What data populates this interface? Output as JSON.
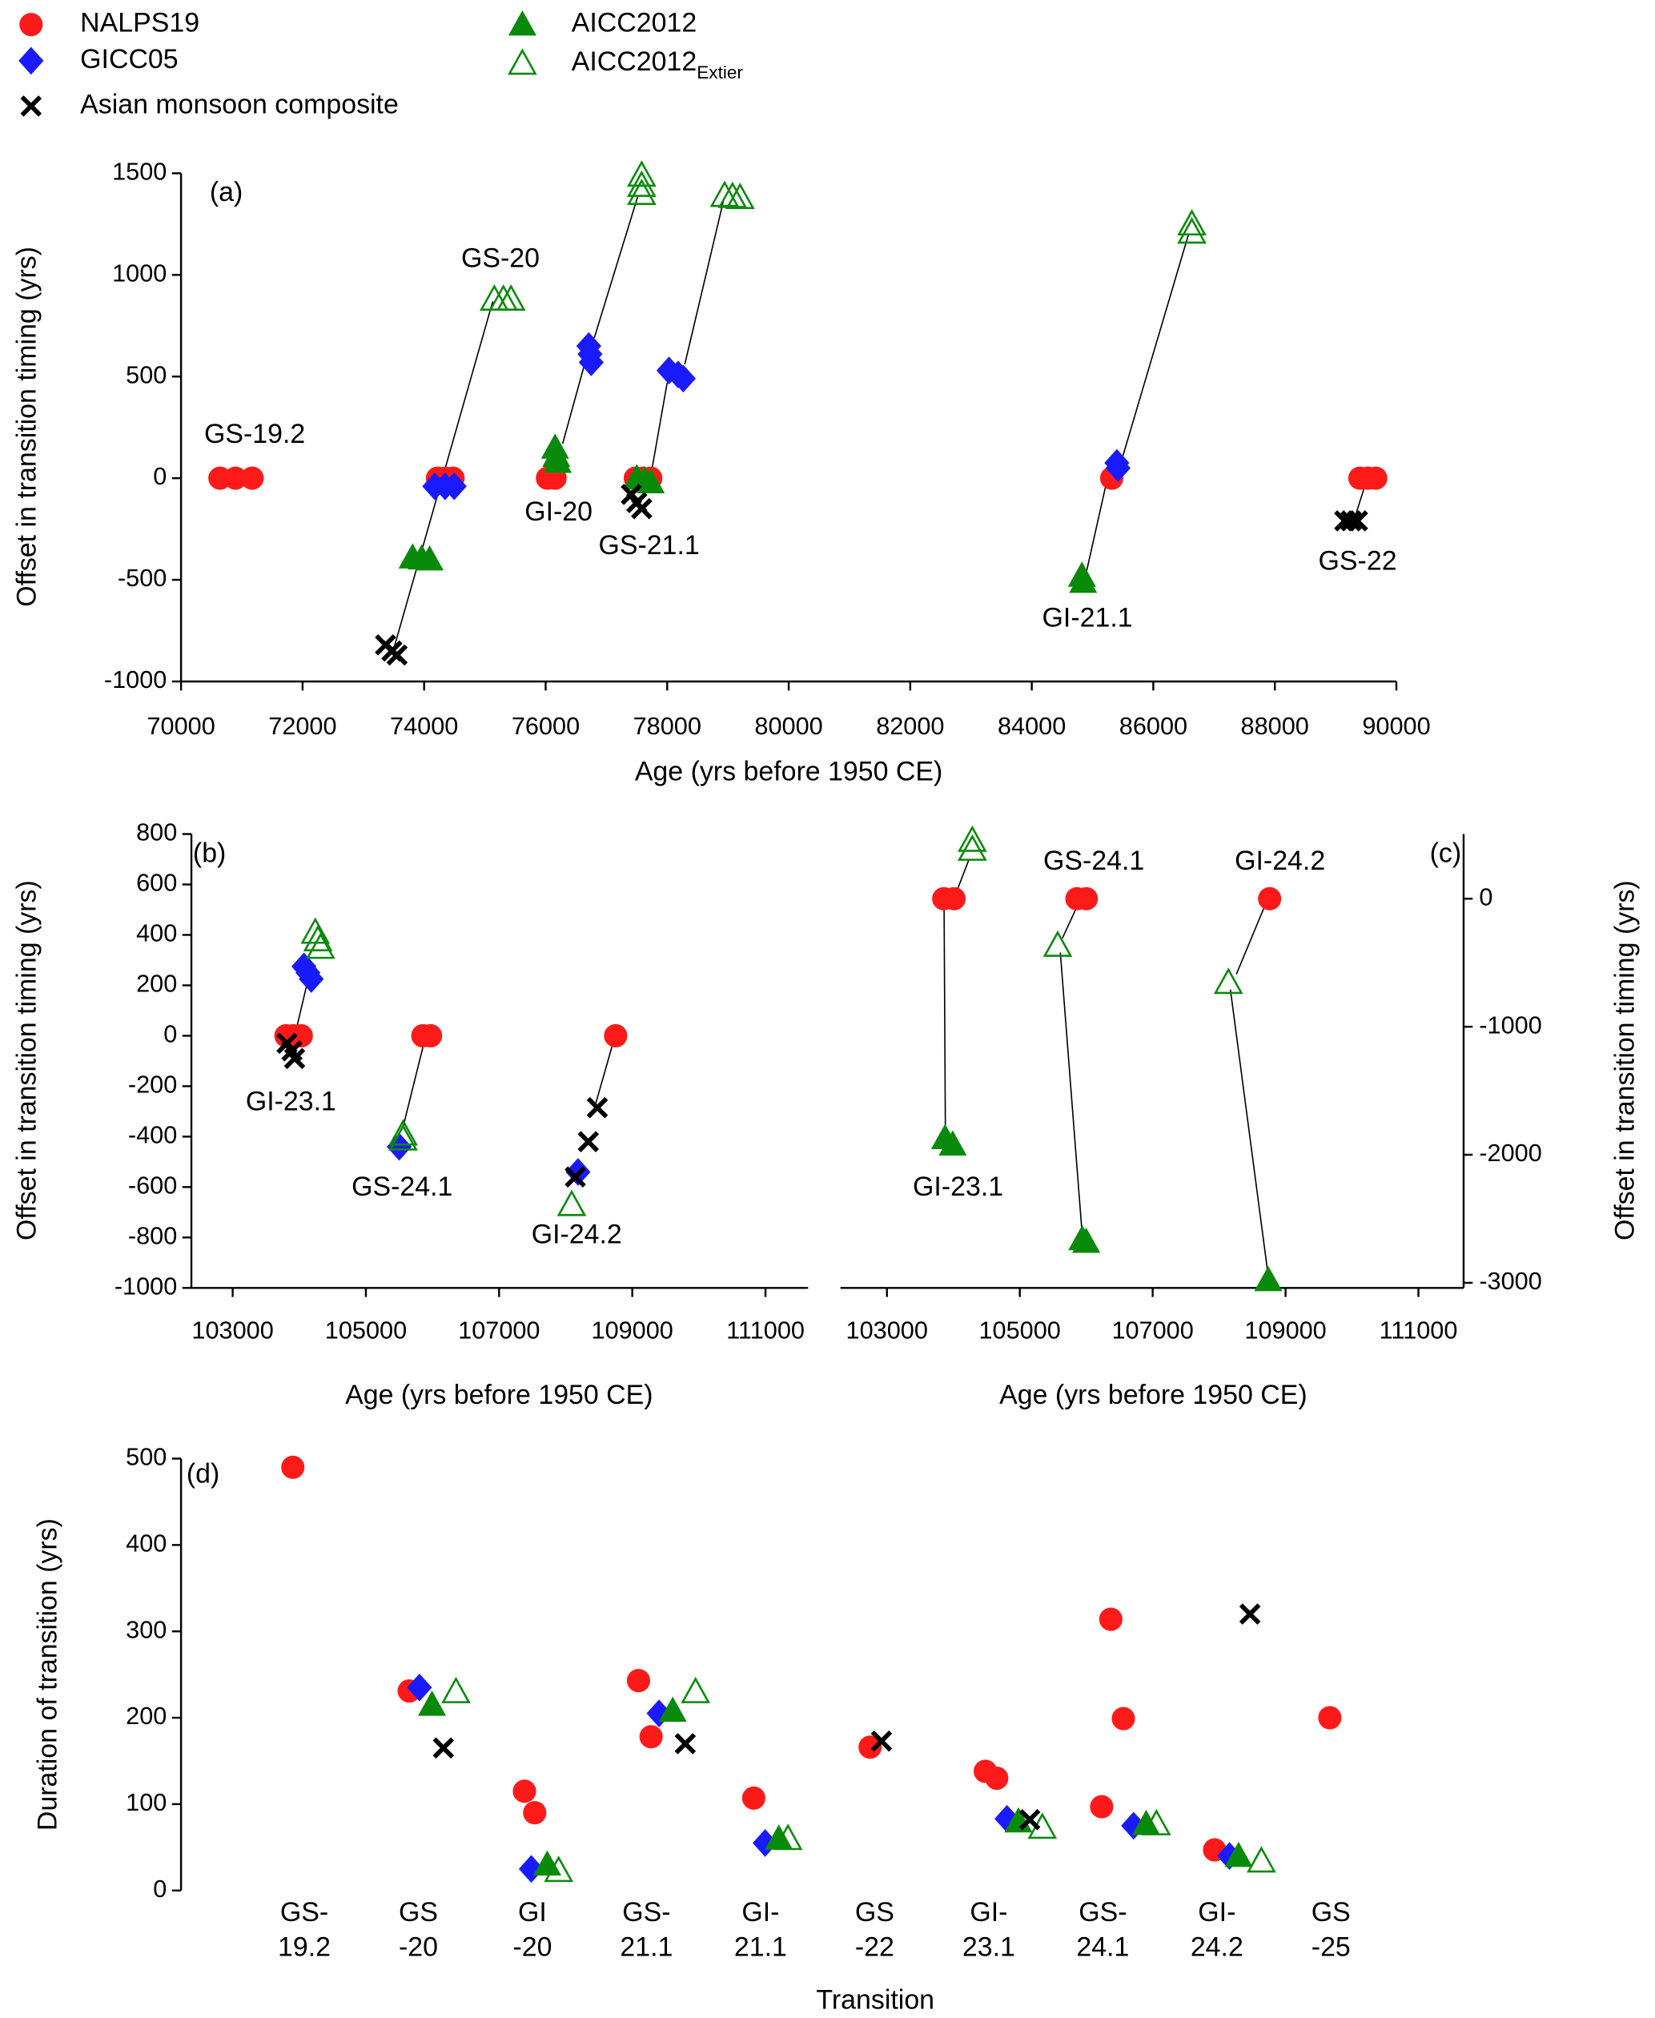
{
  "legend": [
    {
      "name": "NALPS19"
    },
    {
      "name": "GICC05"
    },
    {
      "name": "AICC2012"
    },
    {
      "name": "AICC2012",
      "subscript": "Extier"
    },
    {
      "name": "Asian  monsoon composite"
    }
  ],
  "chart_data": [
    {
      "type": "scatter",
      "label": "(a)",
      "xlabel": "Age (yrs before 1950 CE)",
      "ylabel": "Offset in transition timing (yrs)",
      "xlim": [
        70000,
        90000
      ],
      "xticks": [
        70000,
        72000,
        74000,
        76000,
        78000,
        80000,
        82000,
        84000,
        86000,
        88000,
        90000
      ],
      "ylim": [
        -1000,
        1500
      ],
      "yticks": [
        -1000,
        -500,
        0,
        500,
        1000,
        1500
      ],
      "frame": [
        "left",
        "bottom"
      ],
      "annotations": [
        "GS-19.2",
        "GS-20",
        "GI-20",
        "GS-21.1",
        "GI-21.1",
        "GS-22"
      ],
      "connectors": [
        [
          73490,
          -850,
          75130,
          870
        ],
        [
          76280,
          170,
          76640,
          560
        ],
        [
          76800,
          690,
          77520,
          1390
        ],
        [
          77700,
          -40,
          78000,
          470
        ],
        [
          78290,
          560,
          78930,
          1370
        ],
        [
          84900,
          -460,
          85230,
          -20
        ],
        [
          85500,
          110,
          86580,
          1200
        ],
        [
          89320,
          -190,
          89500,
          -20
        ]
      ],
      "series": [
        {
          "marker": "circle",
          "color": "#ff1a1a",
          "filled": true,
          "x": [
            70640,
            70895,
            71170,
            74220,
            74345,
            74475,
            76030,
            76155,
            77475,
            77600,
            77730,
            85315,
            89400,
            89530,
            89660
          ],
          "values": [
            0,
            0,
            0,
            0,
            0,
            0,
            0,
            0,
            0,
            0,
            0,
            0,
            0,
            0,
            0
          ]
        },
        {
          "marker": "diamond",
          "color": "#1a1aff",
          "filled": true,
          "x": [
            74175,
            74345,
            74495,
            76710,
            76730,
            76750,
            78030,
            78180,
            78265,
            85400,
            85420
          ],
          "values": [
            -40,
            -40,
            -40,
            650,
            610,
            570,
            530,
            510,
            490,
            75,
            50
          ]
        },
        {
          "marker": "triangle",
          "color": "#0a8a0a",
          "filled": true,
          "x": [
            73810,
            73960,
            74090,
            76155,
            76175,
            76200,
            77500,
            77625,
            77730,
            84825,
            84845
          ],
          "values": [
            -390,
            -395,
            -400,
            150,
            110,
            80,
            0,
            -10,
            -20,
            -480,
            -510
          ]
        },
        {
          "marker": "triangle",
          "color": "#0a8a0a",
          "filled": false,
          "x": [
            75155,
            75305,
            75430,
            77580,
            77580,
            77580,
            78945,
            79075,
            79200,
            86635,
            86635
          ],
          "values": [
            880,
            880,
            880,
            1490,
            1440,
            1400,
            1390,
            1385,
            1380,
            1250,
            1210
          ]
        },
        {
          "marker": "cross",
          "color": "#000000",
          "filled": true,
          "x": [
            73365,
            73470,
            73555,
            77410,
            77500,
            77580,
            89150,
            89255,
            89360
          ],
          "values": [
            -820,
            -850,
            -870,
            -80,
            -120,
            -150,
            -210,
            -210,
            -210
          ]
        }
      ]
    },
    {
      "type": "scatter",
      "label": "(b)",
      "xlabel": "Age (yrs before 1950 CE)",
      "ylabel": "Offset in transition timing (yrs)",
      "xlim": [
        102380,
        111640
      ],
      "xticks": [
        103000,
        105000,
        107000,
        109000,
        111000
      ],
      "ylim": [
        -1000,
        800
      ],
      "yticks": [
        -1000,
        -800,
        -600,
        -400,
        -200,
        0,
        200,
        400,
        600,
        800
      ],
      "frame": [
        "left",
        "bottom"
      ],
      "annotations": [
        "GI-23.1",
        "GS-24.1",
        "GI-24.2"
      ],
      "connectors": [
        [
          103950,
          20,
          104120,
          210
        ],
        [
          105560,
          -360,
          105880,
          -20
        ],
        [
          108450,
          -270,
          108720,
          -20
        ]
      ],
      "series": [
        {
          "marker": "circle",
          "color": "#ff1a1a",
          "filled": true,
          "x": [
            103800,
            103910,
            104030,
            105855,
            105970,
            108750
          ],
          "values": [
            0,
            0,
            0,
            0,
            0,
            0
          ]
        },
        {
          "marker": "diamond",
          "color": "#1a1aff",
          "filled": true,
          "x": [
            104070,
            104130,
            104180,
            105500,
            108185
          ],
          "values": [
            275,
            250,
            225,
            -440,
            -540
          ]
        },
        {
          "marker": "triangle",
          "color": "#0a8a0a",
          "filled": false,
          "x": [
            104240,
            104280,
            104320,
            105560,
            105560,
            108090
          ],
          "values": [
            410,
            380,
            350,
            -390,
            -410,
            -670
          ]
        },
        {
          "marker": "cross",
          "color": "#000000",
          "filled": true,
          "x": [
            103815,
            103890,
            103930,
            108145,
            108340,
            108475
          ],
          "values": [
            -30,
            -60,
            -90,
            -560,
            -420,
            -285
          ]
        }
      ]
    },
    {
      "type": "scatter",
      "label": "(c)",
      "xlabel": "Age (yrs before 1950 CE)",
      "ylabel": "Offset in transition timing (yrs)",
      "xlim": [
        102300,
        111680
      ],
      "xticks": [
        103000,
        105000,
        107000,
        109000,
        111000
      ],
      "y2lim": [
        -3040,
        505
      ],
      "y2ticks": [
        -3000,
        -2000,
        -1000,
        0
      ],
      "frame": [
        "right",
        "bottom"
      ],
      "annotations": [
        "GS-24.1",
        "GI-24.2",
        "GI-23.1"
      ],
      "connectors": [
        [
          103880,
          -1840,
          103860,
          -40
        ],
        [
          104030,
          30,
          104230,
          300
        ],
        [
          105940,
          -2630,
          105610,
          -420
        ],
        [
          105640,
          -310,
          105880,
          -40
        ],
        [
          108740,
          -2950,
          108170,
          -710
        ],
        [
          108260,
          -590,
          108700,
          -40
        ]
      ],
      "series": [
        {
          "marker": "circle",
          "color": "#ff1a1a",
          "filled": true,
          "axis": "y2",
          "x": [
            103855,
            104010,
            105860,
            106000,
            108760
          ],
          "values": [
            0,
            0,
            0,
            0,
            0
          ]
        },
        {
          "marker": "triangle",
          "color": "#0a8a0a",
          "filled": true,
          "axis": "y2",
          "x": [
            103875,
            103990,
            105940,
            106000,
            108740
          ],
          "values": [
            -1870,
            -1920,
            -2660,
            -2680,
            -2980
          ]
        },
        {
          "marker": "triangle",
          "color": "#0a8a0a",
          "filled": false,
          "axis": "y2",
          "x": [
            104285,
            104285,
            105570,
            108140
          ],
          "values": [
            455,
            385,
            -365,
            -655
          ]
        }
      ]
    },
    {
      "type": "scatter",
      "label": "(d)",
      "xlabel": "Transition",
      "ylabel": "Duration of transition (yrs)",
      "categories": [
        [
          "GS-",
          "19.2"
        ],
        [
          "GS",
          "-20"
        ],
        [
          "GI",
          "-20"
        ],
        [
          "GS-",
          "21.1"
        ],
        [
          "GI-",
          "21.1"
        ],
        [
          "GS",
          "-22"
        ],
        [
          "GI-",
          "23.1"
        ],
        [
          "GS-",
          "24.1"
        ],
        [
          "GI-",
          "24.2"
        ],
        [
          "GS",
          "-25"
        ]
      ],
      "xlim": [
        -1.08,
        9.8
      ],
      "ylim": [
        0,
        500
      ],
      "yticks": [
        0,
        100,
        200,
        300,
        400,
        500
      ],
      "frame": [
        "left"
      ],
      "series": [
        {
          "marker": "circle",
          "color": "#ff1a1a",
          "filled": true,
          "x": [
            -0.1,
            0.92,
            1.93,
            2.02,
            2.93,
            3.04,
            3.94,
            4.96,
            5.97,
            6.07,
            6.99,
            7.07,
            7.18,
            7.98,
            8.99
          ],
          "values": [
            490,
            231,
            115,
            90,
            243,
            178,
            107,
            166,
            138,
            130,
            97,
            314,
            199,
            47,
            200
          ]
        },
        {
          "marker": "diamond",
          "color": "#1a1aff",
          "filled": true,
          "x": [
            1.01,
            1.99,
            3.11,
            4.04,
            6.16,
            7.27,
            8.11
          ],
          "values": [
            235,
            25,
            205,
            55,
            83,
            75,
            40
          ]
        },
        {
          "marker": "triangle",
          "color": "#0a8a0a",
          "filled": true,
          "x": [
            1.12,
            2.13,
            3.23,
            4.16,
            6.26,
            7.38,
            8.19
          ],
          "values": [
            215,
            30,
            208,
            60,
            80,
            77,
            40
          ]
        },
        {
          "marker": "triangle",
          "color": "#0a8a0a",
          "filled": false,
          "x": [
            1.33,
            2.23,
            3.43,
            4.24,
            6.47,
            7.47,
            8.39
          ],
          "values": [
            230,
            23,
            230,
            60,
            73,
            77,
            34
          ]
        },
        {
          "marker": "cross",
          "color": "#000000",
          "filled": true,
          "x": [
            1.22,
            3.34,
            5.06,
            6.36,
            8.29
          ],
          "values": [
            165,
            170,
            173,
            82,
            320
          ]
        }
      ]
    }
  ]
}
